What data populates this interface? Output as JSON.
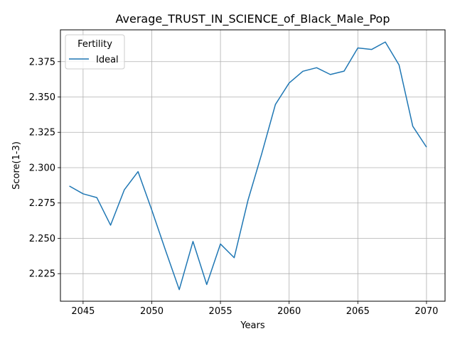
{
  "chart_data": {
    "type": "line",
    "title": "Average_TRUST_IN_SCIENCE_of_Black_Male_Pop",
    "xlabel": "Years",
    "ylabel": "Score(1-3)",
    "xlim": [
      2043.35,
      2071.35
    ],
    "ylim": [
      2.2055,
      2.3975
    ],
    "x_ticks": [
      2045,
      2050,
      2055,
      2060,
      2065,
      2070
    ],
    "x_tick_labels": [
      "2045",
      "2050",
      "2055",
      "2060",
      "2065",
      "2070"
    ],
    "y_ticks": [
      2.225,
      2.25,
      2.275,
      2.3,
      2.325,
      2.35,
      2.375
    ],
    "y_tick_labels": [
      "2.225",
      "2.250",
      "2.275",
      "2.300",
      "2.325",
      "2.350",
      "2.375"
    ],
    "grid": true,
    "legend": {
      "title": "Fertility",
      "position": "top-left"
    },
    "series": [
      {
        "name": "Ideal",
        "color": "#1f77b4",
        "x": [
          2044,
          2045,
          2046,
          2047,
          2048,
          2049,
          2050,
          2051,
          2052,
          2053,
          2054,
          2055,
          2056,
          2057,
          2058,
          2059,
          2060,
          2061,
          2062,
          2063,
          2064,
          2065,
          2066,
          2067,
          2068,
          2069,
          2070
        ],
        "y": [
          2.287,
          2.2815,
          2.2788,
          2.2593,
          2.2843,
          2.2972,
          2.27,
          2.2415,
          2.2137,
          2.2478,
          2.2173,
          2.246,
          2.2363,
          2.2768,
          2.3097,
          2.3447,
          2.3599,
          2.3682,
          2.3707,
          2.3659,
          2.3683,
          2.3847,
          2.3836,
          2.3889,
          2.3727,
          2.3293,
          2.3145
        ]
      }
    ]
  }
}
